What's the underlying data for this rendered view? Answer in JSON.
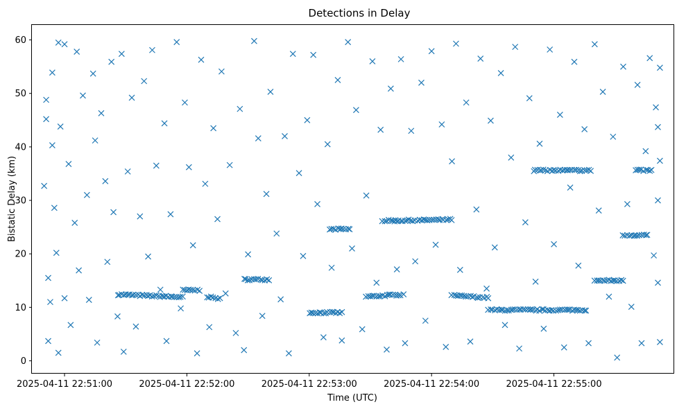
{
  "chart_data": {
    "type": "scatter",
    "title": "Detections in Delay",
    "xlabel": "Time (UTC)",
    "ylabel": "Bistatic Delay (km)",
    "marker": "x",
    "color": "#1f77b4",
    "x_range": [
      "2025-04-11 22:50:44",
      "2025-04-11 22:55:59"
    ],
    "ylim": [
      -2.4,
      62.8
    ],
    "x_ticks": [
      "2025-04-11 22:51:00",
      "2025-04-11 22:52:00",
      "2025-04-11 22:53:00",
      "2025-04-11 22:54:00",
      "2025-04-11 22:55:00"
    ],
    "y_ticks": [
      0,
      10,
      20,
      30,
      40,
      50,
      60
    ],
    "grid": false,
    "legend": "none",
    "time_range_note": "Data spans roughly 2025-04-11 22:50:50 to 22:55:52; detections are scattered uniformly between 1 and 60 km delay with persistent tracks below.",
    "tracks": [
      {
        "t_start": "2025-04-11 22:51:26",
        "t_end": "2025-04-11 22:51:58",
        "delay_start": 12.4,
        "delay_end": 11.9
      },
      {
        "t_start": "2025-04-11 22:51:58",
        "t_end": "2025-04-11 22:52:06",
        "delay_start": 13.2,
        "delay_end": 13.2
      },
      {
        "t_start": "2025-04-11 22:52:10",
        "t_end": "2025-04-11 22:52:16",
        "delay_start": 12.0,
        "delay_end": 11.6
      },
      {
        "t_start": "2025-04-11 22:52:28",
        "t_end": "2025-04-11 22:52:40",
        "delay_start": 15.2,
        "delay_end": 15.2
      },
      {
        "t_start": "2025-04-11 22:53:00",
        "t_end": "2025-04-11 22:53:16",
        "delay_start": 9.0,
        "delay_end": 9.0
      },
      {
        "t_start": "2025-04-11 22:53:10",
        "t_end": "2025-04-11 22:53:20",
        "delay_start": 24.6,
        "delay_end": 24.6
      },
      {
        "t_start": "2025-04-11 22:53:28",
        "t_end": "2025-04-11 22:53:46",
        "delay_start": 12.0,
        "delay_end": 12.4
      },
      {
        "t_start": "2025-04-11 22:53:36",
        "t_end": "2025-04-11 22:53:42",
        "delay_start": 26.2,
        "delay_end": 26.2
      },
      {
        "t_start": "2025-04-11 22:53:42",
        "t_end": "2025-04-11 22:54:10",
        "delay_start": 26.2,
        "delay_end": 26.4
      },
      {
        "t_start": "2025-04-11 22:54:10",
        "t_end": "2025-04-11 22:54:28",
        "delay_start": 12.2,
        "delay_end": 11.8
      },
      {
        "t_start": "2025-04-11 22:54:28",
        "t_end": "2025-04-11 22:55:16",
        "delay_start": 9.5,
        "delay_end": 9.5
      },
      {
        "t_start": "2025-04-11 22:54:50",
        "t_end": "2025-04-11 22:55:18",
        "delay_start": 35.6,
        "delay_end": 35.6
      },
      {
        "t_start": "2025-04-11 22:55:20",
        "t_end": "2025-04-11 22:55:34",
        "delay_start": 15.0,
        "delay_end": 15.0
      },
      {
        "t_start": "2025-04-11 22:55:34",
        "t_end": "2025-04-11 22:55:46",
        "delay_start": 23.5,
        "delay_end": 23.5
      },
      {
        "t_start": "2025-04-11 22:55:40",
        "t_end": "2025-04-11 22:55:48",
        "delay_start": 35.6,
        "delay_end": 35.6
      }
    ],
    "points": [
      [
        "2025-04-11 22:50:50",
        32.7
      ],
      [
        "2025-04-11 22:50:51",
        48.8
      ],
      [
        "2025-04-11 22:50:51",
        45.2
      ],
      [
        "2025-04-11 22:50:52",
        3.7
      ],
      [
        "2025-04-11 22:50:52",
        15.5
      ],
      [
        "2025-04-11 22:50:53",
        11.0
      ],
      [
        "2025-04-11 22:50:54",
        53.9
      ],
      [
        "2025-04-11 22:50:54",
        40.3
      ],
      [
        "2025-04-11 22:50:55",
        28.6
      ],
      [
        "2025-04-11 22:50:56",
        20.2
      ],
      [
        "2025-04-11 22:50:57",
        1.5
      ],
      [
        "2025-04-11 22:50:57",
        59.5
      ],
      [
        "2025-04-11 22:50:58",
        43.8
      ],
      [
        "2025-04-11 22:51:00",
        11.7
      ],
      [
        "2025-04-11 22:51:00",
        59.2
      ],
      [
        "2025-04-11 22:51:02",
        36.8
      ],
      [
        "2025-04-11 22:51:03",
        6.7
      ],
      [
        "2025-04-11 22:51:05",
        25.8
      ],
      [
        "2025-04-11 22:51:06",
        57.8
      ],
      [
        "2025-04-11 22:51:07",
        16.9
      ],
      [
        "2025-04-11 22:51:09",
        49.6
      ],
      [
        "2025-04-11 22:51:11",
        31.0
      ],
      [
        "2025-04-11 22:51:12",
        11.4
      ],
      [
        "2025-04-11 22:51:14",
        53.7
      ],
      [
        "2025-04-11 22:51:15",
        41.2
      ],
      [
        "2025-04-11 22:51:16",
        3.4
      ],
      [
        "2025-04-11 22:51:18",
        46.3
      ],
      [
        "2025-04-11 22:51:20",
        33.6
      ],
      [
        "2025-04-11 22:51:21",
        18.5
      ],
      [
        "2025-04-11 22:51:23",
        55.9
      ],
      [
        "2025-04-11 22:51:24",
        27.8
      ],
      [
        "2025-04-11 22:51:26",
        8.3
      ],
      [
        "2025-04-11 22:51:28",
        57.4
      ],
      [
        "2025-04-11 22:51:29",
        1.7
      ],
      [
        "2025-04-11 22:51:31",
        35.4
      ],
      [
        "2025-04-11 22:51:33",
        49.2
      ],
      [
        "2025-04-11 22:51:35",
        6.4
      ],
      [
        "2025-04-11 22:51:37",
        27.0
      ],
      [
        "2025-04-11 22:51:39",
        52.3
      ],
      [
        "2025-04-11 22:51:41",
        19.5
      ],
      [
        "2025-04-11 22:51:43",
        58.1
      ],
      [
        "2025-04-11 22:51:45",
        36.5
      ],
      [
        "2025-04-11 22:51:47",
        13.3
      ],
      [
        "2025-04-11 22:51:49",
        44.4
      ],
      [
        "2025-04-11 22:51:50",
        3.7
      ],
      [
        "2025-04-11 22:51:52",
        27.4
      ],
      [
        "2025-04-11 22:51:55",
        59.6
      ],
      [
        "2025-04-11 22:51:57",
        9.8
      ],
      [
        "2025-04-11 22:51:59",
        48.3
      ],
      [
        "2025-04-11 22:52:01",
        36.2
      ],
      [
        "2025-04-11 22:52:03",
        21.6
      ],
      [
        "2025-04-11 22:52:05",
        1.4
      ],
      [
        "2025-04-11 22:52:07",
        56.3
      ],
      [
        "2025-04-11 22:52:09",
        33.1
      ],
      [
        "2025-04-11 22:52:11",
        6.3
      ],
      [
        "2025-04-11 22:52:13",
        43.5
      ],
      [
        "2025-04-11 22:52:15",
        26.5
      ],
      [
        "2025-04-11 22:52:17",
        54.1
      ],
      [
        "2025-04-11 22:52:19",
        12.6
      ],
      [
        "2025-04-11 22:52:21",
        36.6
      ],
      [
        "2025-04-11 22:52:24",
        5.2
      ],
      [
        "2025-04-11 22:52:26",
        47.1
      ],
      [
        "2025-04-11 22:52:28",
        2.0
      ],
      [
        "2025-04-11 22:52:30",
        19.9
      ],
      [
        "2025-04-11 22:52:33",
        59.8
      ],
      [
        "2025-04-11 22:52:35",
        41.6
      ],
      [
        "2025-04-11 22:52:37",
        8.4
      ],
      [
        "2025-04-11 22:52:39",
        31.2
      ],
      [
        "2025-04-11 22:52:41",
        50.3
      ],
      [
        "2025-04-11 22:52:44",
        23.8
      ],
      [
        "2025-04-11 22:52:46",
        11.5
      ],
      [
        "2025-04-11 22:52:48",
        42.0
      ],
      [
        "2025-04-11 22:52:50",
        1.4
      ],
      [
        "2025-04-11 22:52:52",
        57.4
      ],
      [
        "2025-04-11 22:52:55",
        35.1
      ],
      [
        "2025-04-11 22:52:57",
        19.6
      ],
      [
        "2025-04-11 22:52:59",
        45.0
      ],
      [
        "2025-04-11 22:53:02",
        57.2
      ],
      [
        "2025-04-11 22:53:04",
        29.3
      ],
      [
        "2025-04-11 22:53:07",
        4.4
      ],
      [
        "2025-04-11 22:53:09",
        40.5
      ],
      [
        "2025-04-11 22:53:11",
        17.4
      ],
      [
        "2025-04-11 22:53:14",
        52.5
      ],
      [
        "2025-04-11 22:53:16",
        3.8
      ],
      [
        "2025-04-11 22:53:19",
        59.6
      ],
      [
        "2025-04-11 22:53:21",
        21.0
      ],
      [
        "2025-04-11 22:53:23",
        46.9
      ],
      [
        "2025-04-11 22:53:26",
        5.9
      ],
      [
        "2025-04-11 22:53:28",
        30.9
      ],
      [
        "2025-04-11 22:53:31",
        56.0
      ],
      [
        "2025-04-11 22:53:33",
        14.6
      ],
      [
        "2025-04-11 22:53:35",
        43.2
      ],
      [
        "2025-04-11 22:53:38",
        2.1
      ],
      [
        "2025-04-11 22:53:40",
        50.9
      ],
      [
        "2025-04-11 22:53:43",
        17.1
      ],
      [
        "2025-04-11 22:53:45",
        56.4
      ],
      [
        "2025-04-11 22:53:47",
        3.3
      ],
      [
        "2025-04-11 22:53:50",
        43.0
      ],
      [
        "2025-04-11 22:53:52",
        18.6
      ],
      [
        "2025-04-11 22:53:55",
        52.0
      ],
      [
        "2025-04-11 22:53:57",
        7.5
      ],
      [
        "2025-04-11 22:54:00",
        57.9
      ],
      [
        "2025-04-11 22:54:02",
        21.7
      ],
      [
        "2025-04-11 22:54:05",
        44.2
      ],
      [
        "2025-04-11 22:54:07",
        2.6
      ],
      [
        "2025-04-11 22:54:10",
        37.3
      ],
      [
        "2025-04-11 22:54:12",
        59.3
      ],
      [
        "2025-04-11 22:54:14",
        17.0
      ],
      [
        "2025-04-11 22:54:17",
        48.3
      ],
      [
        "2025-04-11 22:54:19",
        3.6
      ],
      [
        "2025-04-11 22:54:22",
        28.3
      ],
      [
        "2025-04-11 22:54:24",
        56.5
      ],
      [
        "2025-04-11 22:54:27",
        13.5
      ],
      [
        "2025-04-11 22:54:29",
        44.9
      ],
      [
        "2025-04-11 22:54:31",
        21.2
      ],
      [
        "2025-04-11 22:54:34",
        53.8
      ],
      [
        "2025-04-11 22:54:36",
        6.7
      ],
      [
        "2025-04-11 22:54:39",
        38.0
      ],
      [
        "2025-04-11 22:54:41",
        58.7
      ],
      [
        "2025-04-11 22:54:43",
        2.3
      ],
      [
        "2025-04-11 22:54:46",
        25.9
      ],
      [
        "2025-04-11 22:54:48",
        49.1
      ],
      [
        "2025-04-11 22:54:51",
        14.8
      ],
      [
        "2025-04-11 22:54:53",
        40.6
      ],
      [
        "2025-04-11 22:54:55",
        6.0
      ],
      [
        "2025-04-11 22:54:58",
        58.2
      ],
      [
        "2025-04-11 22:55:00",
        21.8
      ],
      [
        "2025-04-11 22:55:03",
        46.0
      ],
      [
        "2025-04-11 22:55:05",
        2.5
      ],
      [
        "2025-04-11 22:55:08",
        32.4
      ],
      [
        "2025-04-11 22:55:10",
        55.9
      ],
      [
        "2025-04-11 22:55:12",
        17.8
      ],
      [
        "2025-04-11 22:55:15",
        43.3
      ],
      [
        "2025-04-11 22:55:17",
        3.3
      ],
      [
        "2025-04-11 22:55:20",
        59.2
      ],
      [
        "2025-04-11 22:55:22",
        28.1
      ],
      [
        "2025-04-11 22:55:24",
        50.3
      ],
      [
        "2025-04-11 22:55:27",
        12.0
      ],
      [
        "2025-04-11 22:55:29",
        41.9
      ],
      [
        "2025-04-11 22:55:31",
        0.6
      ],
      [
        "2025-04-11 22:55:34",
        55.0
      ],
      [
        "2025-04-11 22:55:36",
        29.3
      ],
      [
        "2025-04-11 22:55:38",
        10.1
      ],
      [
        "2025-04-11 22:55:41",
        51.6
      ],
      [
        "2025-04-11 22:55:43",
        3.3
      ],
      [
        "2025-04-11 22:55:45",
        39.2
      ],
      [
        "2025-04-11 22:55:47",
        56.6
      ],
      [
        "2025-04-11 22:55:49",
        19.7
      ],
      [
        "2025-04-11 22:55:50",
        47.4
      ],
      [
        "2025-04-11 22:55:51",
        14.6
      ],
      [
        "2025-04-11 22:55:51",
        30.0
      ],
      [
        "2025-04-11 22:55:52",
        3.5
      ],
      [
        "2025-04-11 22:55:52",
        54.8
      ],
      [
        "2025-04-11 22:55:52",
        37.4
      ],
      [
        "2025-04-11 22:55:51",
        43.7
      ]
    ]
  }
}
